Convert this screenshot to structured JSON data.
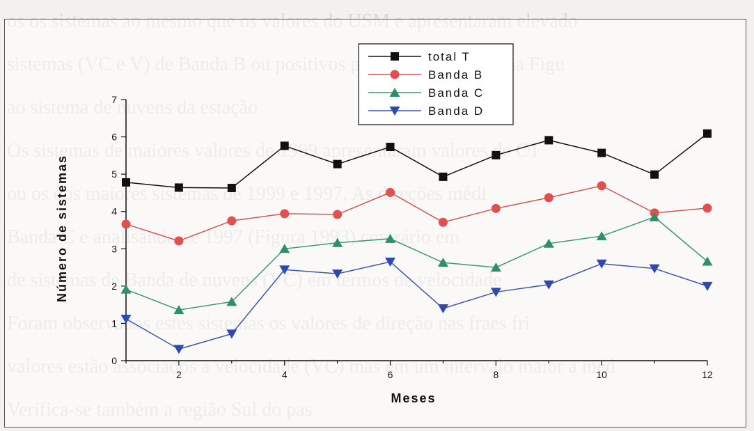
{
  "background_text": [
    "os os sistemas ao mesmo que os valores do USM e apresentaram elevado",
    "sistemas (VC e V) de Banda B ou positivos pode ser observado na Figu",
    "ao sistema de nuvens da estação",
    "Os sistemas de maiores valores de 1999 apresentaram valores de CT",
    "ou os dos maiores sistemas de 1999 e 1997. As direções médi",
    "Banda C e analisando-se 1997 (Figura 1993) contrário em",
    "de sistemas de Banda de nuvens (VC) em termos de velocidade",
    "Foram observados estes sistemas os valores de direção nas fraes fri",
    "valores estão associados a velocidade (VC) mas em um intervalo maior a méd",
    "Verifica-se também a região Sul do pas"
  ],
  "chart_data": {
    "type": "line",
    "title": "",
    "xlabel": "Meses",
    "ylabel": "Número de sistemas",
    "x": [
      1,
      2,
      3,
      4,
      5,
      6,
      7,
      8,
      9,
      10,
      11,
      12
    ],
    "xlim": [
      1,
      12
    ],
    "ylim": [
      0,
      7
    ],
    "xticks": [
      2,
      4,
      6,
      8,
      10,
      12
    ],
    "yticks": [
      0,
      1,
      2,
      3,
      4,
      5,
      6,
      7
    ],
    "grid": false,
    "legend_position": "top-center",
    "series": [
      {
        "name": "total T",
        "marker": "square",
        "color": "#111111",
        "marker_color": "#111111",
        "values": [
          4.78,
          4.64,
          4.63,
          5.76,
          5.27,
          5.73,
          4.93,
          5.51,
          5.91,
          5.57,
          4.99,
          6.09
        ]
      },
      {
        "name": "Banda B",
        "marker": "circle",
        "color": "#d9534f",
        "marker_color": "#e05050",
        "values": [
          3.66,
          3.21,
          3.75,
          3.94,
          3.92,
          4.51,
          3.71,
          4.08,
          4.37,
          4.69,
          3.96,
          4.09
        ]
      },
      {
        "name": "Banda C",
        "marker": "triangle-up",
        "color": "#3a9a72",
        "marker_color": "#2f8f66",
        "values": [
          1.91,
          1.36,
          1.58,
          3.0,
          3.16,
          3.27,
          2.63,
          2.5,
          3.14,
          3.34,
          3.85,
          2.66
        ]
      },
      {
        "name": "Banda D",
        "marker": "triangle-down",
        "color": "#3a55b0",
        "marker_color": "#3049b0",
        "values": [
          1.12,
          0.31,
          0.72,
          2.44,
          2.33,
          2.65,
          1.4,
          1.84,
          2.04,
          2.6,
          2.47,
          2.0
        ]
      }
    ]
  }
}
